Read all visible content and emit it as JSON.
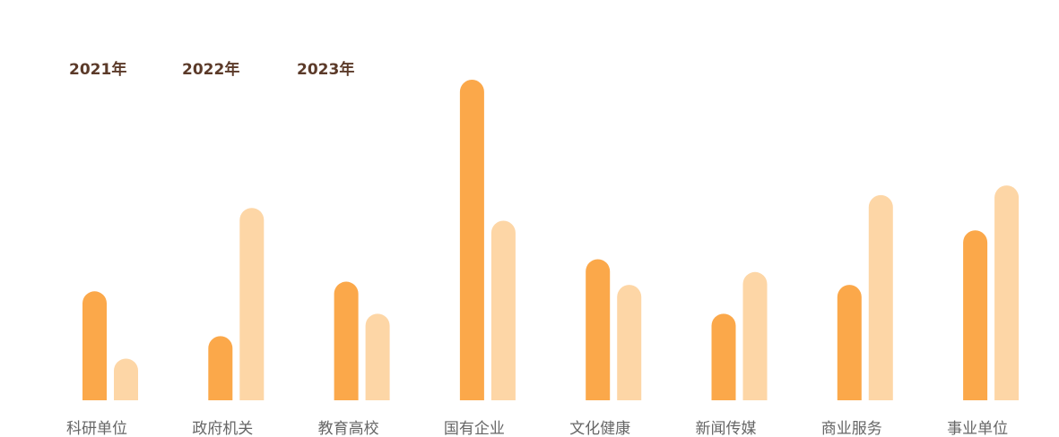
{
  "chart_data": {
    "type": "bar",
    "year_tabs": [
      "2021年",
      "2022年",
      "2023年"
    ],
    "categories": [
      "科研单位",
      "政府机关",
      "教育高校",
      "国有企业",
      "文化健康",
      "新闻传媒",
      "商业服务",
      "事业单位"
    ],
    "series": [
      {
        "color": "#fba84a",
        "values": [
          34,
          20,
          37,
          100,
          44,
          27,
          36,
          53
        ]
      },
      {
        "color": "#fdd6a6",
        "values": [
          13,
          60,
          27,
          56,
          36,
          40,
          64,
          67
        ]
      }
    ],
    "ylim": [
      0,
      100
    ]
  }
}
